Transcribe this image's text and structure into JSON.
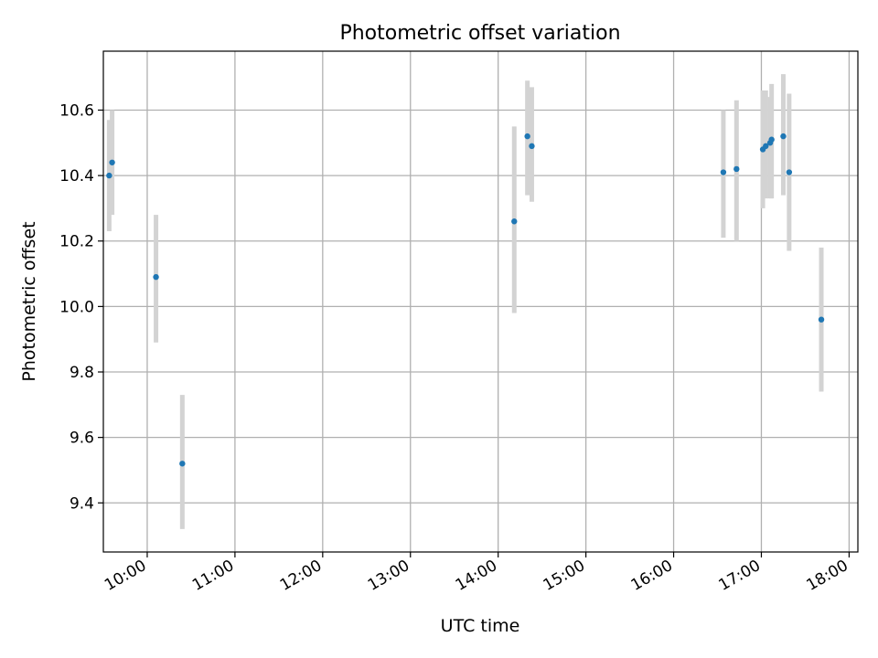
{
  "chart_data": {
    "type": "scatter",
    "title": "Photometric offset variation",
    "xlabel": "UTC time",
    "ylabel": "Photometric offset",
    "x_ticks": [
      "10:00",
      "11:00",
      "12:00",
      "13:00",
      "14:00",
      "15:00",
      "16:00",
      "17:00",
      "18:00"
    ],
    "y_ticks": [
      "9.4",
      "9.6",
      "9.8",
      "10.0",
      "10.2",
      "10.4",
      "10.6"
    ],
    "xlim": [
      "09:30",
      "18:06"
    ],
    "ylim": [
      9.25,
      10.78
    ],
    "grid": true,
    "colors": {
      "points": "#1f77b4",
      "errorbars": "#d3d3d3",
      "grid": "#b0b0b0"
    },
    "points": [
      {
        "time": "09:34",
        "value": 10.4,
        "err_low": 10.23,
        "err_high": 10.57
      },
      {
        "time": "09:36",
        "value": 10.44,
        "err_low": 10.28,
        "err_high": 10.6
      },
      {
        "time": "10:06",
        "value": 10.09,
        "err_low": 9.89,
        "err_high": 10.28
      },
      {
        "time": "10:24",
        "value": 9.52,
        "err_low": 9.32,
        "err_high": 9.73
      },
      {
        "time": "14:11",
        "value": 10.26,
        "err_low": 9.98,
        "err_high": 10.55
      },
      {
        "time": "14:20",
        "value": 10.52,
        "err_low": 10.34,
        "err_high": 10.69
      },
      {
        "time": "14:23",
        "value": 10.49,
        "err_low": 10.32,
        "err_high": 10.67
      },
      {
        "time": "16:34",
        "value": 10.41,
        "err_low": 10.21,
        "err_high": 10.6
      },
      {
        "time": "16:43",
        "value": 10.42,
        "err_low": 10.2,
        "err_high": 10.63
      },
      {
        "time": "17:01",
        "value": 10.48,
        "err_low": 10.3,
        "err_high": 10.66
      },
      {
        "time": "17:03",
        "value": 10.49,
        "err_low": 10.33,
        "err_high": 10.66
      },
      {
        "time": "17:06",
        "value": 10.5,
        "err_low": 10.33,
        "err_high": 10.64
      },
      {
        "time": "17:07",
        "value": 10.51,
        "err_low": 10.33,
        "err_high": 10.68
      },
      {
        "time": "17:15",
        "value": 10.52,
        "err_low": 10.34,
        "err_high": 10.71
      },
      {
        "time": "17:19",
        "value": 10.41,
        "err_low": 10.17,
        "err_high": 10.65
      },
      {
        "time": "17:41",
        "value": 9.96,
        "err_low": 9.74,
        "err_high": 10.18
      }
    ]
  }
}
